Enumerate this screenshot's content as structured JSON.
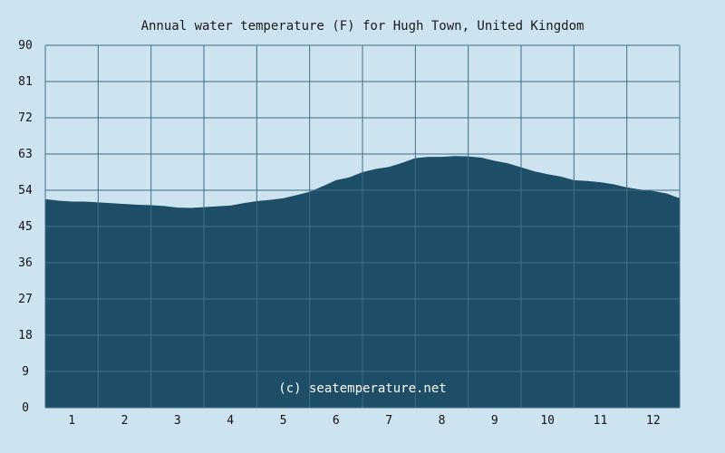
{
  "chart_data": {
    "type": "area",
    "title": "Annual water temperature (F) for Hugh Town, United Kingdom",
    "xlabel": "",
    "ylabel": "",
    "x_ticks": [
      "1",
      "2",
      "3",
      "4",
      "5",
      "6",
      "7",
      "8",
      "9",
      "10",
      "11",
      "12"
    ],
    "y_ticks": [
      "0",
      "9",
      "18",
      "27",
      "36",
      "45",
      "54",
      "63",
      "72",
      "81",
      "90"
    ],
    "xlim": [
      0.5,
      12.5
    ],
    "ylim": [
      0,
      90
    ],
    "grid": true,
    "watermark": "(c) seatemperature.net",
    "colors": {
      "background": "#cde3ef",
      "area": "#1e4d68",
      "grid": "#3d6e8a"
    },
    "series": [
      {
        "x": [
          0.5,
          0.75,
          1.0,
          1.25,
          1.5,
          1.75,
          2.0,
          2.25,
          2.5,
          2.75,
          3.0,
          3.25,
          3.5,
          3.75,
          4.0,
          4.25,
          4.5,
          4.75,
          5.0,
          5.25,
          5.5,
          5.75,
          6.0,
          6.25,
          6.5,
          6.75,
          7.0,
          7.25,
          7.5,
          7.75,
          8.0,
          8.25,
          8.5,
          8.75,
          9.0,
          9.25,
          9.5,
          9.75,
          10.0,
          10.25,
          10.5,
          10.75,
          11.0,
          11.25,
          11.5,
          11.75,
          12.0,
          12.25,
          12.5
        ],
        "y": [
          51.8,
          51.4,
          51.2,
          51.2,
          51.0,
          50.8,
          50.6,
          50.4,
          50.3,
          50.1,
          49.7,
          49.6,
          49.8,
          50.0,
          50.2,
          50.8,
          51.3,
          51.6,
          52.0,
          52.8,
          53.6,
          55.0,
          56.5,
          57.2,
          58.5,
          59.3,
          59.8,
          60.8,
          62.0,
          62.3,
          62.3,
          62.5,
          62.4,
          62.1,
          61.3,
          60.7,
          59.7,
          58.7,
          58.0,
          57.4,
          56.5,
          56.3,
          56.0,
          55.5,
          54.7,
          54.2,
          53.8,
          53.2,
          52.0
        ]
      }
    ]
  }
}
